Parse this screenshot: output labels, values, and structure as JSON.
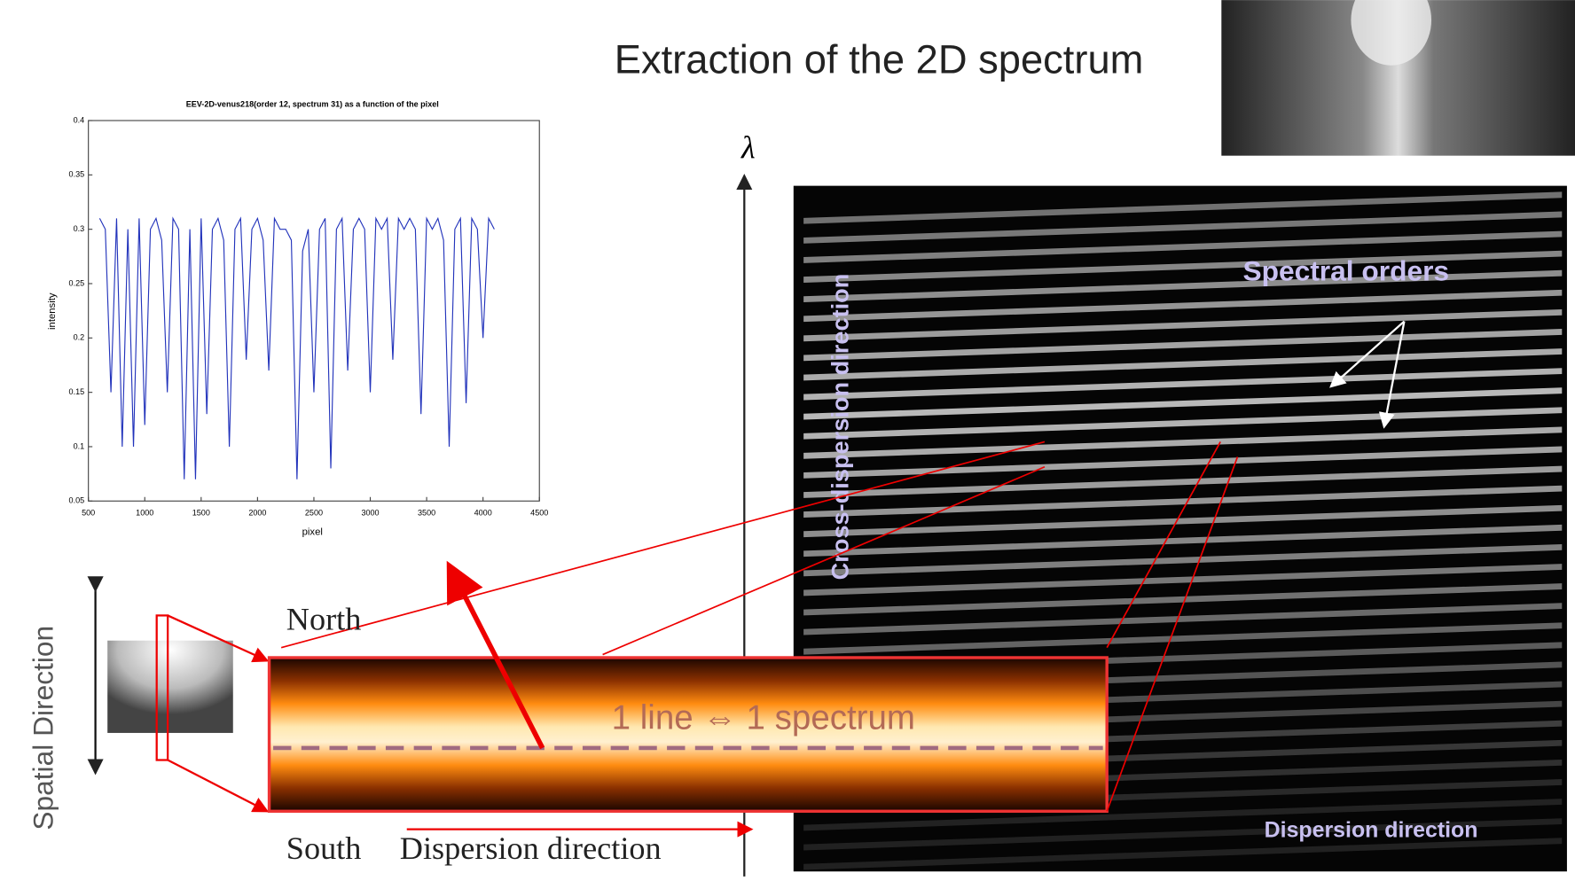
{
  "slide": {
    "title": "Extraction of the 2D spectrum",
    "lambda": "λ",
    "north": "North",
    "south": "South",
    "dispersion": "Dispersion direction",
    "spatial": "Spatial Direction",
    "equivalence": "1 line ⇔ 1 spectrum",
    "cross_dispersion": "Cross-dispersion direction",
    "spectral_orders": "Spectral orders",
    "image_dispersion": "Dispersion direction"
  },
  "chart_data": {
    "type": "line",
    "title": "EEV-2D-venus218(order 12, spectrum 31) as a function of the pixel",
    "x_label": "pixel",
    "y_label": "intensity",
    "color": "#2233bb",
    "xlim": [
      500,
      4500
    ],
    "xticks": [
      500,
      1000,
      1500,
      2000,
      2500,
      3000,
      3500,
      4000,
      4500
    ],
    "ylim": [
      0.05,
      0.4
    ],
    "yticks": [
      0.05,
      0.1,
      0.15,
      0.2,
      0.25,
      0.3,
      0.35,
      0.4
    ],
    "x": [
      600,
      650,
      700,
      750,
      800,
      850,
      900,
      950,
      1000,
      1050,
      1100,
      1150,
      1200,
      1250,
      1300,
      1350,
      1400,
      1450,
      1500,
      1550,
      1600,
      1650,
      1700,
      1750,
      1800,
      1850,
      1900,
      1950,
      2000,
      2050,
      2100,
      2150,
      2200,
      2250,
      2300,
      2350,
      2400,
      2450,
      2500,
      2550,
      2600,
      2650,
      2700,
      2750,
      2800,
      2850,
      2900,
      2950,
      3000,
      3050,
      3100,
      3150,
      3200,
      3250,
      3300,
      3350,
      3400,
      3450,
      3500,
      3550,
      3600,
      3650,
      3700,
      3750,
      3800,
      3850,
      3900,
      3950,
      4000,
      4050,
      4100
    ],
    "values": [
      0.31,
      0.3,
      0.15,
      0.31,
      0.1,
      0.3,
      0.1,
      0.31,
      0.12,
      0.3,
      0.31,
      0.29,
      0.15,
      0.31,
      0.3,
      0.07,
      0.3,
      0.07,
      0.31,
      0.13,
      0.3,
      0.31,
      0.29,
      0.1,
      0.3,
      0.31,
      0.18,
      0.3,
      0.31,
      0.29,
      0.17,
      0.31,
      0.3,
      0.3,
      0.29,
      0.07,
      0.28,
      0.3,
      0.15,
      0.3,
      0.31,
      0.08,
      0.3,
      0.31,
      0.17,
      0.3,
      0.31,
      0.3,
      0.15,
      0.31,
      0.3,
      0.31,
      0.18,
      0.31,
      0.3,
      0.31,
      0.3,
      0.13,
      0.31,
      0.3,
      0.31,
      0.29,
      0.1,
      0.3,
      0.31,
      0.14,
      0.31,
      0.3,
      0.2,
      0.31,
      0.3
    ]
  }
}
